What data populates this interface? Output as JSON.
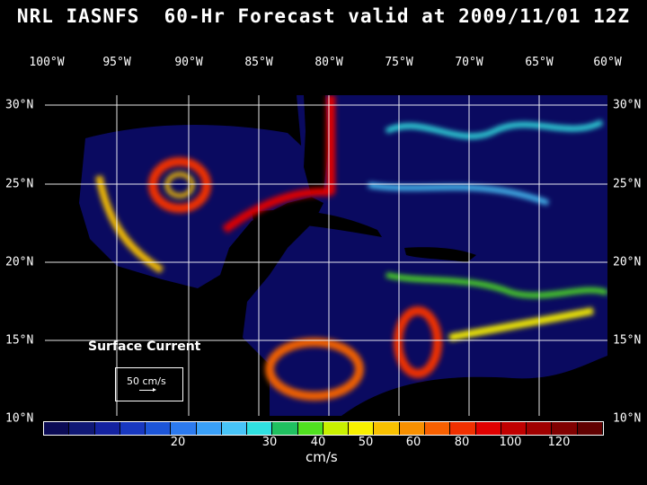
{
  "title": "NRL IASNFS  60-Hr Forecast valid at 2009/11/01 12Z",
  "longitudes": [
    "100°W",
    "95°W",
    "90°W",
    "85°W",
    "80°W",
    "75°W",
    "70°W",
    "65°W",
    "60°W"
  ],
  "latitudes": [
    "30°N",
    "25°N",
    "20°N",
    "15°N",
    "10°N"
  ],
  "field_label": "Surface Current",
  "reference_vector": {
    "label": "50 cm/s"
  },
  "colorbar": {
    "colors": [
      "#0b0b55",
      "#101875",
      "#1422a0",
      "#1838c0",
      "#1c55d8",
      "#2c7aee",
      "#3aa0f8",
      "#48c4f8",
      "#30e0e0",
      "#20c060",
      "#50e020",
      "#c8f000",
      "#f8f000",
      "#f8c000",
      "#f89000",
      "#f86000",
      "#f03000",
      "#e00000",
      "#c00000",
      "#a00000",
      "#800000",
      "#600000"
    ],
    "ticks": [
      "20",
      "30",
      "40",
      "50",
      "60",
      "80",
      "100",
      "120"
    ],
    "units": "cm/s"
  },
  "colors": {
    "ocean": "#0a0a60",
    "land": "#000000",
    "coast": "#ffffff"
  }
}
